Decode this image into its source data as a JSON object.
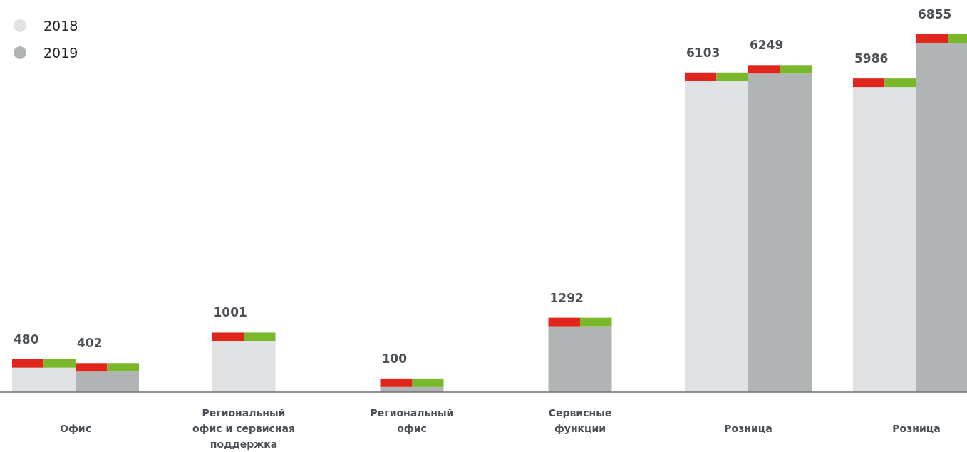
{
  "chart_data": {
    "type": "bar",
    "categories": [
      "Офис",
      "Региональный\nофис и сервисная\nподдержка",
      "Региональный\nофис",
      "Сервисные\nфункции",
      "Розница",
      "Розница"
    ],
    "series": [
      {
        "name": "2018",
        "color": "#e1e2e4",
        "values": [
          480,
          1001,
          null,
          null,
          6103,
          5986
        ]
      },
      {
        "name": "2019",
        "color": "#b1b4b5",
        "values": [
          402,
          null,
          100,
          1292,
          6249,
          6855
        ]
      }
    ],
    "data_labels": true,
    "legend": "top left"
  }
}
